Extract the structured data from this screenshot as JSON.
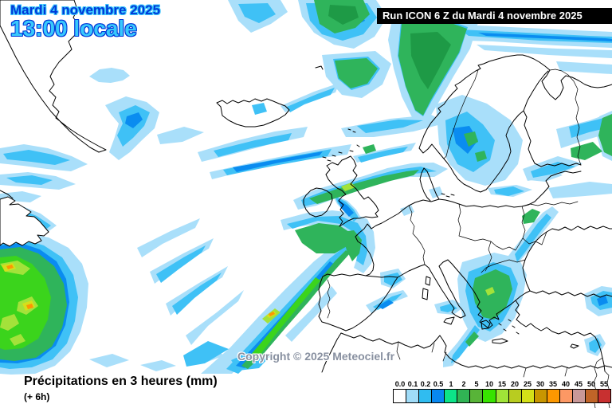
{
  "header": {
    "date_label": "Mardi 4 novembre 2025",
    "time_label": "13:00 locale",
    "run_label": "Run ICON 6 Z du Mardi 4 novembre 2025"
  },
  "map": {
    "copyright": "Copyright © 2025 Meteociel.fr",
    "region": "North Atlantic and Europe"
  },
  "footer": {
    "title": "Précipitations en 3 heures (mm)",
    "subtitle": "(+ 6h)"
  },
  "legend": {
    "unit": "mm",
    "entries": [
      {
        "label": "0.0",
        "color": "#FFFFFF"
      },
      {
        "label": "0.1",
        "color": "#A0DCF8"
      },
      {
        "label": "0.2",
        "color": "#30BCF0"
      },
      {
        "label": "0.5",
        "color": "#0888F0"
      },
      {
        "label": "1",
        "color": "#0CE488"
      },
      {
        "label": "2",
        "color": "#30B454"
      },
      {
        "label": "5",
        "color": "#58B438"
      },
      {
        "label": "10",
        "color": "#38E400"
      },
      {
        "label": "15",
        "color": "#A0E438"
      },
      {
        "label": "20",
        "color": "#B8CC20"
      },
      {
        "label": "25",
        "color": "#D4E018"
      },
      {
        "label": "30",
        "color": "#C89600"
      },
      {
        "label": "35",
        "color": "#FC9800"
      },
      {
        "label": "40",
        "color": "#FC9864"
      },
      {
        "label": "45",
        "color": "#C89898"
      },
      {
        "label": "50",
        "color": "#C06428"
      },
      {
        "label": "55",
        "color": "#C83030"
      }
    ]
  },
  "colors": {
    "header_date_fill": "#0038D8",
    "header_date_outline": "#3CC8FC",
    "header_time_fill": "#38C8FC",
    "header_time_outline": "#0038D8",
    "run_bar_bg": "#000000",
    "run_bar_text": "#FFFFFF",
    "copyright_fill": "#8890A0"
  }
}
